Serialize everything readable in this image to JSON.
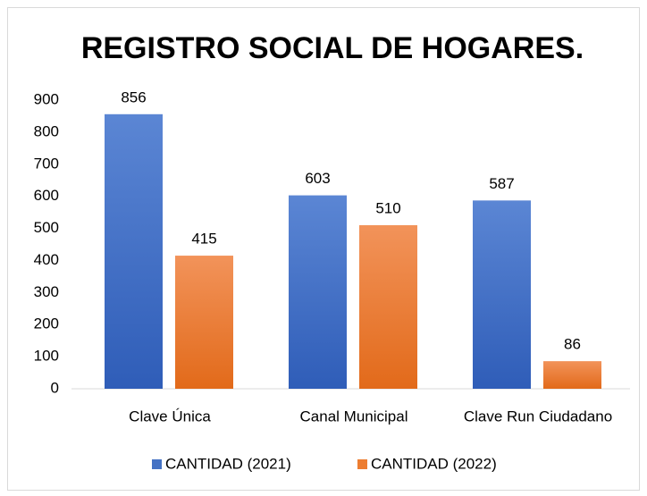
{
  "chart_data": {
    "type": "bar",
    "title": "REGISTRO SOCIAL DE HOGARES.",
    "categories": [
      "Clave Única",
      "Canal Municipal",
      "Clave Run Ciudadano"
    ],
    "series": [
      {
        "name": "CANTIDAD (2021)",
        "color": "#4472c4",
        "values": [
          856,
          603,
          587
        ]
      },
      {
        "name": "CANTIDAD (2022)",
        "color": "#ed7d31",
        "values": [
          415,
          510,
          86
        ]
      }
    ],
    "ylim": [
      0,
      900
    ],
    "yticks": [
      0,
      100,
      200,
      300,
      400,
      500,
      600,
      700,
      800,
      900
    ],
    "grid": false,
    "legend": "bottom"
  }
}
